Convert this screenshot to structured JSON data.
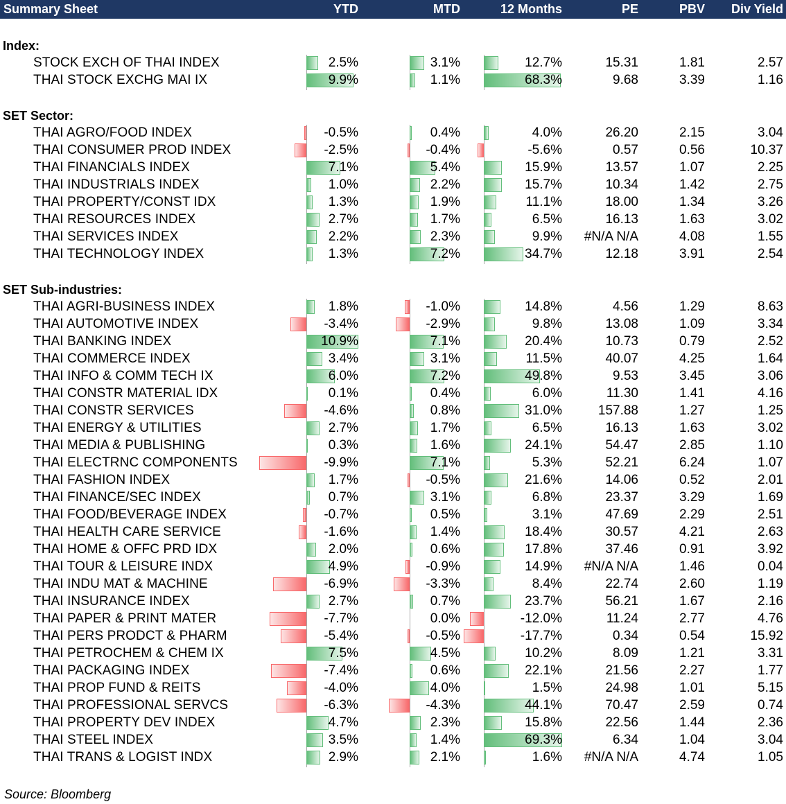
{
  "header": {
    "title": "Summary Sheet",
    "columns": [
      "YTD",
      "MTD",
      "12 Months",
      "PE",
      "PBV",
      "Div Yield"
    ]
  },
  "sections": [
    {
      "title": "Index:",
      "rows": [
        {
          "name": "STOCK EXCH OF THAI INDEX",
          "ytd": "2.5%",
          "mtd": "3.1%",
          "m12": "12.7%",
          "pe": "15.31",
          "pbv": "1.81",
          "dy": "2.57"
        },
        {
          "name": "THAI STOCK EXCHG MAI IX",
          "ytd": "9.9%",
          "mtd": "1.1%",
          "m12": "68.3%",
          "pe": "9.68",
          "pbv": "3.39",
          "dy": "1.16"
        }
      ]
    },
    {
      "title": "SET Sector:",
      "rows": [
        {
          "name": "THAI AGRO/FOOD INDEX",
          "ytd": "-0.5%",
          "mtd": "0.4%",
          "m12": "4.0%",
          "pe": "26.20",
          "pbv": "2.15",
          "dy": "3.04"
        },
        {
          "name": "THAI CONSUMER PROD INDEX",
          "ytd": "-2.5%",
          "mtd": "-0.4%",
          "m12": "-5.6%",
          "pe": "0.57",
          "pbv": "0.56",
          "dy": "10.37"
        },
        {
          "name": "THAI FINANCIALS INDEX",
          "ytd": "7.1%",
          "mtd": "5.4%",
          "m12": "15.9%",
          "pe": "13.57",
          "pbv": "1.07",
          "dy": "2.25"
        },
        {
          "name": "THAI INDUSTRIALS INDEX",
          "ytd": "1.0%",
          "mtd": "2.2%",
          "m12": "15.7%",
          "pe": "10.34",
          "pbv": "1.42",
          "dy": "2.75"
        },
        {
          "name": "THAI PROPERTY/CONST IDX",
          "ytd": "1.3%",
          "mtd": "1.9%",
          "m12": "11.1%",
          "pe": "18.00",
          "pbv": "1.34",
          "dy": "3.26"
        },
        {
          "name": "THAI RESOURCES INDEX",
          "ytd": "2.7%",
          "mtd": "1.7%",
          "m12": "6.5%",
          "pe": "16.13",
          "pbv": "1.63",
          "dy": "3.02"
        },
        {
          "name": "THAI SERVICES INDEX",
          "ytd": "2.2%",
          "mtd": "2.3%",
          "m12": "9.9%",
          "pe": "#N/A N/A",
          "pbv": "4.08",
          "dy": "1.55"
        },
        {
          "name": "THAI TECHNOLOGY INDEX",
          "ytd": "1.3%",
          "mtd": "7.2%",
          "m12": "34.7%",
          "pe": "12.18",
          "pbv": "3.91",
          "dy": "2.54"
        }
      ]
    },
    {
      "title": "SET Sub-industries:",
      "rows": [
        {
          "name": "THAI AGRI-BUSINESS INDEX",
          "ytd": "1.8%",
          "mtd": "-1.0%",
          "m12": "14.8%",
          "pe": "4.56",
          "pbv": "1.29",
          "dy": "8.63"
        },
        {
          "name": "THAI AUTOMOTIVE INDEX",
          "ytd": "-3.4%",
          "mtd": "-2.9%",
          "m12": "9.8%",
          "pe": "13.08",
          "pbv": "1.09",
          "dy": "3.34"
        },
        {
          "name": "THAI BANKING INDEX",
          "ytd": "10.9%",
          "mtd": "7.1%",
          "m12": "20.4%",
          "pe": "10.73",
          "pbv": "0.79",
          "dy": "2.52"
        },
        {
          "name": "THAI COMMERCE INDEX",
          "ytd": "3.4%",
          "mtd": "3.1%",
          "m12": "11.5%",
          "pe": "40.07",
          "pbv": "4.25",
          "dy": "1.64"
        },
        {
          "name": "THAI INFO & COMM TECH IX",
          "ytd": "6.0%",
          "mtd": "7.2%",
          "m12": "49.8%",
          "pe": "9.53",
          "pbv": "3.45",
          "dy": "3.06"
        },
        {
          "name": "THAI CONSTR MATERIAL IDX",
          "ytd": "0.1%",
          "mtd": "0.4%",
          "m12": "6.0%",
          "pe": "11.30",
          "pbv": "1.41",
          "dy": "4.16"
        },
        {
          "name": "THAI CONSTR SERVICES",
          "ytd": "-4.6%",
          "mtd": "0.8%",
          "m12": "31.0%",
          "pe": "157.88",
          "pbv": "1.27",
          "dy": "1.25"
        },
        {
          "name": "THAI ENERGY & UTILITIES",
          "ytd": "2.7%",
          "mtd": "1.7%",
          "m12": "6.5%",
          "pe": "16.13",
          "pbv": "1.63",
          "dy": "3.02"
        },
        {
          "name": "THAI MEDIA & PUBLISHING",
          "ytd": "0.3%",
          "mtd": "1.6%",
          "m12": "24.1%",
          "pe": "54.47",
          "pbv": "2.85",
          "dy": "1.10"
        },
        {
          "name": "THAI ELECTRNC COMPONENTS",
          "ytd": "-9.9%",
          "mtd": "7.1%",
          "m12": "5.3%",
          "pe": "52.21",
          "pbv": "6.24",
          "dy": "1.07"
        },
        {
          "name": "THAI FASHION INDEX",
          "ytd": "1.7%",
          "mtd": "-0.5%",
          "m12": "21.6%",
          "pe": "14.06",
          "pbv": "0.52",
          "dy": "2.01"
        },
        {
          "name": "THAI FINANCE/SEC INDEX",
          "ytd": "0.7%",
          "mtd": "3.1%",
          "m12": "6.8%",
          "pe": "23.37",
          "pbv": "3.29",
          "dy": "1.69"
        },
        {
          "name": "THAI FOOD/BEVERAGE INDEX",
          "ytd": "-0.7%",
          "mtd": "0.5%",
          "m12": "3.1%",
          "pe": "47.69",
          "pbv": "2.29",
          "dy": "2.51"
        },
        {
          "name": "THAI HEALTH CARE SERVICE",
          "ytd": "-1.6%",
          "mtd": "1.4%",
          "m12": "18.4%",
          "pe": "30.57",
          "pbv": "4.21",
          "dy": "2.63"
        },
        {
          "name": "THAI HOME & OFFC PRD IDX",
          "ytd": "2.0%",
          "mtd": "0.6%",
          "m12": "17.8%",
          "pe": "37.46",
          "pbv": "0.91",
          "dy": "3.92"
        },
        {
          "name": "THAI TOUR & LEISURE INDX",
          "ytd": "4.9%",
          "mtd": "-0.9%",
          "m12": "14.9%",
          "pe": "#N/A N/A",
          "pbv": "1.46",
          "dy": "0.04"
        },
        {
          "name": "THAI INDU MAT & MACHINE",
          "ytd": "-6.9%",
          "mtd": "-3.3%",
          "m12": "8.4%",
          "pe": "22.74",
          "pbv": "2.60",
          "dy": "1.19"
        },
        {
          "name": "THAI INSURANCE INDEX",
          "ytd": "2.7%",
          "mtd": "0.7%",
          "m12": "23.7%",
          "pe": "56.21",
          "pbv": "1.67",
          "dy": "2.16"
        },
        {
          "name": "THAI PAPER & PRINT MATER",
          "ytd": "-7.7%",
          "mtd": "0.0%",
          "m12": "-12.0%",
          "pe": "11.24",
          "pbv": "2.77",
          "dy": "4.76"
        },
        {
          "name": "THAI PERS PRODCT & PHARM",
          "ytd": "-5.4%",
          "mtd": "-0.5%",
          "m12": "-17.7%",
          "pe": "0.34",
          "pbv": "0.54",
          "dy": "15.92"
        },
        {
          "name": "THAI PETROCHEM & CHEM IX",
          "ytd": "7.5%",
          "mtd": "4.5%",
          "m12": "10.2%",
          "pe": "8.09",
          "pbv": "1.21",
          "dy": "3.31"
        },
        {
          "name": "THAI PACKAGING INDEX",
          "ytd": "-7.4%",
          "mtd": "0.6%",
          "m12": "22.1%",
          "pe": "21.56",
          "pbv": "2.27",
          "dy": "1.77"
        },
        {
          "name": "THAI PROP FUND & REITS",
          "ytd": "-4.0%",
          "mtd": "4.0%",
          "m12": "1.5%",
          "pe": "24.98",
          "pbv": "1.01",
          "dy": "5.15"
        },
        {
          "name": "THAI PROFESSIONAL SERVCS",
          "ytd": "-6.3%",
          "mtd": "-4.3%",
          "m12": "44.1%",
          "pe": "70.47",
          "pbv": "2.59",
          "dy": "0.74"
        },
        {
          "name": "THAI PROPERTY DEV INDEX",
          "ytd": "4.7%",
          "mtd": "2.3%",
          "m12": "15.8%",
          "pe": "22.56",
          "pbv": "1.44",
          "dy": "2.36"
        },
        {
          "name": "THAI STEEL INDEX",
          "ytd": "3.5%",
          "mtd": "1.4%",
          "m12": "69.3%",
          "pe": "6.34",
          "pbv": "1.04",
          "dy": "3.04"
        },
        {
          "name": "THAI TRANS & LOGIST INDX",
          "ytd": "2.9%",
          "mtd": "2.1%",
          "m12": "1.6%",
          "pe": "#N/A N/A",
          "pbv": "4.74",
          "dy": "1.05"
        }
      ]
    }
  ],
  "source": "Source: Bloomberg",
  "colors": {
    "header_bg": "#1f3864",
    "header_text": "#ffffff",
    "positive_bar": "#63be7b",
    "negative_bar": "#f8696b"
  }
}
